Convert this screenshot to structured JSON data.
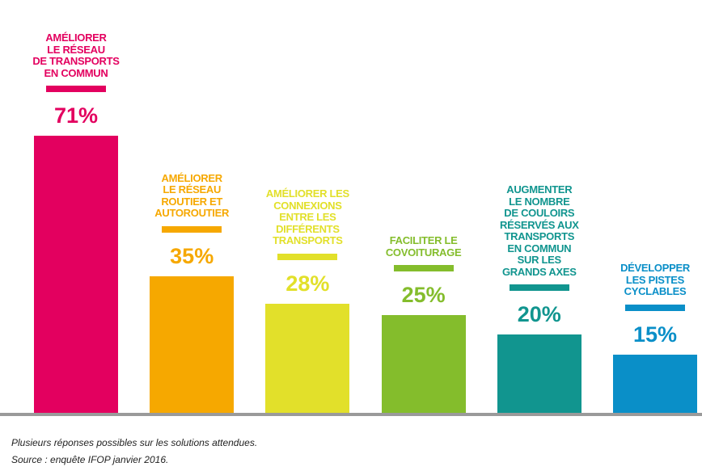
{
  "chart_data": {
    "type": "bar",
    "categories": [
      "AMÉLIORER\nLE RÉSEAU\nDE TRANSPORTS\nEN COMMUN",
      "AMÉLIORER\nLE RÉSEAU\nROUTIER ET\nAUTOROUTIER",
      "AMÉLIORER LES\nCONNEXIONS\nENTRE LES\nDIFFÉRENTS\nTRANSPORTS",
      "FACILITER LE\nCOVOITURAGE",
      "AUGMENTER\nLE NOMBRE\nDE COULOIRS\nRÉSERVÉS AUX\nTRANSPORTS\nEN COMMUN\nSUR LES\nGRANDS AXES",
      "DÉVELOPPER\nLES PISTES\nCYCLABLES"
    ],
    "values": [
      71,
      35,
      28,
      25,
      20,
      15
    ],
    "value_labels": [
      "71%",
      "35%",
      "28%",
      "25%",
      "20%",
      "15%"
    ],
    "colors": [
      "#e3005f",
      "#f6a800",
      "#e2e02a",
      "#84bd2c",
      "#11958f",
      "#0a8fc8"
    ],
    "footnotes": [
      "Plusieurs réponses possibles sur les solutions attendues.",
      "Source : enquête IFOP janvier 2016."
    ]
  }
}
